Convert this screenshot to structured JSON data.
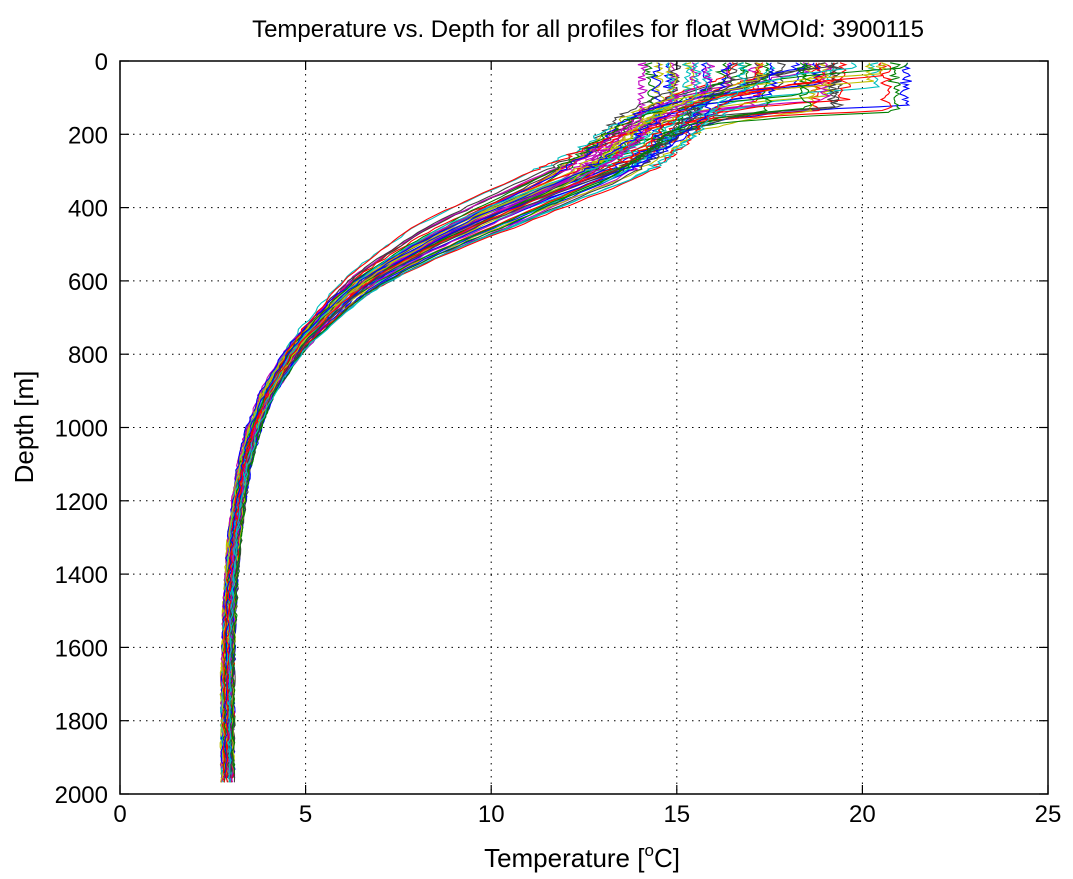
{
  "chart_data": {
    "type": "line",
    "title": "Temperature vs. Depth for all profiles for float WMOId: 3900115",
    "xlabel_main": "Temperature [",
    "xlabel_sup": "o",
    "xlabel_end": "C]",
    "ylabel": "Depth [m]",
    "xlim": [
      0,
      25
    ],
    "ylim": [
      0,
      2000
    ],
    "y_reversed": true,
    "grid": true,
    "x_ticks": [
      0,
      5,
      10,
      15,
      20,
      25
    ],
    "y_ticks": [
      0,
      200,
      400,
      600,
      800,
      1000,
      1200,
      1400,
      1600,
      1800,
      2000
    ],
    "x_tick_labels": [
      "0",
      "5",
      "10",
      "15",
      "20",
      "25"
    ],
    "y_tick_labels": [
      "0",
      "200",
      "400",
      "600",
      "800",
      "1000",
      "1200",
      "1400",
      "1600",
      "1800",
      "2000"
    ],
    "profile_count": 60,
    "profile_colors": [
      "#0000ff",
      "#008000",
      "#ff0000",
      "#00bfbf",
      "#bf00bf",
      "#bfbf00",
      "#404040"
    ],
    "mean_profile": {
      "depth": [
        5,
        50,
        100,
        150,
        200,
        250,
        300,
        350,
        400,
        450,
        500,
        550,
        600,
        650,
        700,
        750,
        800,
        850,
        900,
        1000,
        1100,
        1200,
        1300,
        1400,
        1500,
        1600,
        1700,
        1800,
        1900,
        1975
      ],
      "temperature": [
        16.8,
        16.2,
        15.2,
        14.7,
        14.2,
        13.6,
        12.8,
        11.6,
        10.4,
        9.3,
        8.3,
        7.4,
        6.6,
        6.0,
        5.5,
        5.0,
        4.6,
        4.3,
        4.0,
        3.6,
        3.35,
        3.2,
        3.08,
        3.0,
        2.95,
        2.92,
        2.9,
        2.9,
        2.9,
        2.9
      ]
    }
  }
}
